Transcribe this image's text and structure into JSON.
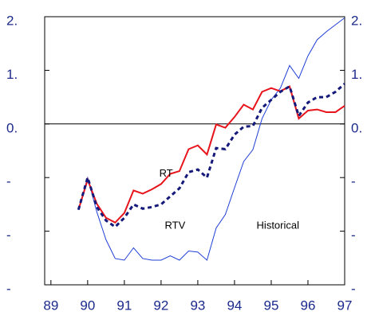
{
  "chart_data": {
    "type": "line",
    "x": [
      89.75,
      90,
      90.25,
      90.5,
      90.75,
      91,
      91.25,
      91.5,
      91.75,
      92,
      92.25,
      92.5,
      92.75,
      93,
      93.25,
      93.5,
      93.75,
      94,
      94.25,
      94.5,
      94.75,
      95,
      95.25,
      95.5,
      95.75,
      96,
      96.25,
      96.5,
      96.75,
      97
    ],
    "series": [
      {
        "name": "Historical",
        "color": "#1f3fd6",
        "style": "solid",
        "width": 1,
        "values": [
          -1.6,
          -1.0,
          -1.64,
          -2.16,
          -2.51,
          -2.54,
          -2.31,
          -2.51,
          -2.54,
          -2.54,
          -2.46,
          -2.54,
          -2.37,
          -2.39,
          -2.54,
          -1.94,
          -1.69,
          -1.19,
          -0.7,
          -0.48,
          0.1,
          0.45,
          0.67,
          1.09,
          0.85,
          1.27,
          1.57,
          1.72,
          1.85,
          1.98
        ]
      },
      {
        "name": "RT",
        "color": "#e8141c",
        "style": "solid",
        "width": 2,
        "values": [
          -1.6,
          -1.04,
          -1.49,
          -1.75,
          -1.84,
          -1.66,
          -1.24,
          -1.3,
          -1.22,
          -1.12,
          -0.93,
          -0.88,
          -0.47,
          -0.4,
          -0.57,
          -0.01,
          -0.07,
          0.13,
          0.36,
          0.27,
          0.6,
          0.67,
          0.61,
          0.7,
          0.1,
          0.25,
          0.27,
          0.22,
          0.22,
          0.34
        ]
      },
      {
        "name": "RTV",
        "color": "#14197a",
        "style": "dashed",
        "width": 3,
        "values": [
          -1.6,
          -1.0,
          -1.55,
          -1.8,
          -1.92,
          -1.75,
          -1.5,
          -1.58,
          -1.55,
          -1.5,
          -1.35,
          -1.2,
          -0.9,
          -0.85,
          -1.0,
          -0.45,
          -0.47,
          -0.2,
          -0.05,
          -0.04,
          0.3,
          0.45,
          0.6,
          0.7,
          0.15,
          0.4,
          0.5,
          0.5,
          0.6,
          0.75
        ]
      }
    ],
    "annotations": [
      {
        "text": "RT",
        "x": 91.95,
        "y": -0.93
      },
      {
        "text": "RTV",
        "x": 92.1,
        "y": -1.9
      },
      {
        "text": "Historical",
        "x": 94.6,
        "y": -1.9
      }
    ],
    "xlim": [
      88.83,
      97
    ],
    "ylim": [
      -3,
      2
    ],
    "xticks": [
      89,
      90,
      91,
      92,
      93,
      94,
      95,
      96,
      97
    ],
    "yticks": [
      {
        "value": 2,
        "label": "2."
      },
      {
        "value": 1,
        "label": "1."
      },
      {
        "value": 0,
        "label": "0."
      },
      {
        "value": -1,
        "label": "-"
      },
      {
        "value": -2,
        "label": "-"
      },
      {
        "value": -3,
        "label": "-"
      }
    ],
    "zero_line": true
  }
}
